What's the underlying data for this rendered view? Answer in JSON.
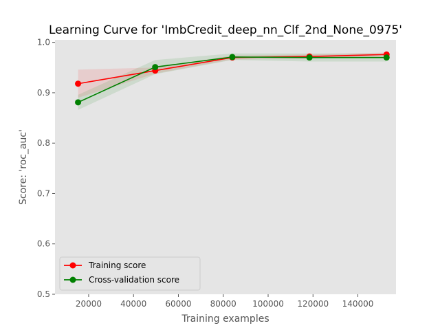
{
  "chart_data": {
    "type": "line",
    "title": "Learning Curve for 'ImbCredit_deep_nn_Clf_2nd_None_0975'",
    "xlabel": "Training examples",
    "ylabel": "Score: 'roc_auc'",
    "xlim": [
      5000,
      157000
    ],
    "ylim": [
      0.5,
      1.005
    ],
    "xticks": [
      20000,
      40000,
      60000,
      80000,
      100000,
      120000,
      140000
    ],
    "yticks": [
      0.5,
      0.6,
      0.7,
      0.8,
      0.9,
      1.0
    ],
    "grid": false,
    "legend_position": "lower-left",
    "background": "#e5e5e5",
    "x": [
      15280,
      49660,
      84040,
      118420,
      152800
    ],
    "series": [
      {
        "name": "Training score",
        "color": "#ff0000",
        "values": [
          0.918,
          0.944,
          0.97,
          0.972,
          0.976
        ],
        "band_lower": [
          0.89,
          0.938,
          0.966,
          0.968,
          0.972
        ],
        "band_upper": [
          0.946,
          0.95,
          0.974,
          0.976,
          0.98
        ]
      },
      {
        "name": "Cross-validation score",
        "color": "#008000",
        "values": [
          0.881,
          0.951,
          0.971,
          0.97,
          0.97
        ],
        "band_lower": [
          0.866,
          0.937,
          0.965,
          0.962,
          0.962
        ],
        "band_upper": [
          0.896,
          0.965,
          0.978,
          0.978,
          0.978
        ]
      }
    ]
  }
}
